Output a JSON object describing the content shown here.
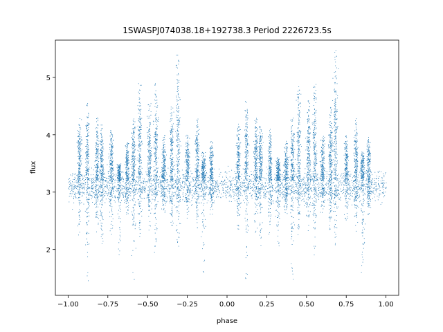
{
  "chart_data": {
    "type": "scatter",
    "title": "1SWASPJ074038.18+192738.3 Period 2226723.5s",
    "xlabel": "phase",
    "ylabel": "flux",
    "xlim": [
      -1.08,
      1.08
    ],
    "ylim": [
      1.2,
      5.65
    ],
    "xticks": [
      -1.0,
      -0.75,
      -0.5,
      -0.25,
      0.0,
      0.25,
      0.5,
      0.75,
      1.0
    ],
    "xtick_labels": [
      "−1.00",
      "−0.75",
      "−0.50",
      "−0.25",
      "0.00",
      "0.25",
      "0.50",
      "0.75",
      "1.00"
    ],
    "yticks": [
      2,
      3,
      4,
      5
    ],
    "ytick_labels": [
      "2",
      "3",
      "4",
      "5"
    ],
    "grid": false,
    "marker_color": "#1f77b4",
    "baseline_flux": 3.1,
    "clusters": [
      {
        "phase": -0.93,
        "top": 4.3,
        "bottom": 2.2
      },
      {
        "phase": -0.88,
        "top": 4.6,
        "bottom": 1.4
      },
      {
        "phase": -0.82,
        "top": 4.3,
        "bottom": 2.3
      },
      {
        "phase": -0.79,
        "top": 4.2,
        "bottom": 2.0
      },
      {
        "phase": -0.73,
        "top": 4.1,
        "bottom": 2.2
      },
      {
        "phase": -0.68,
        "top": 3.5,
        "bottom": 1.9
      },
      {
        "phase": -0.63,
        "top": 3.9,
        "bottom": 2.6
      },
      {
        "phase": -0.59,
        "top": 4.3,
        "bottom": 1.4
      },
      {
        "phase": -0.55,
        "top": 4.9,
        "bottom": 2.2
      },
      {
        "phase": -0.49,
        "top": 4.6,
        "bottom": 2.3
      },
      {
        "phase": -0.45,
        "top": 4.9,
        "bottom": 1.9
      },
      {
        "phase": -0.4,
        "top": 4.0,
        "bottom": 2.6
      },
      {
        "phase": -0.35,
        "top": 4.5,
        "bottom": 2.3
      },
      {
        "phase": -0.31,
        "top": 5.4,
        "bottom": 2.0
      },
      {
        "phase": -0.25,
        "top": 4.0,
        "bottom": 2.5
      },
      {
        "phase": -0.19,
        "top": 4.3,
        "bottom": 2.3
      },
      {
        "phase": -0.15,
        "top": 3.7,
        "bottom": 1.6
      },
      {
        "phase": -0.1,
        "top": 3.9,
        "bottom": 2.6
      },
      {
        "phase": 0.07,
        "top": 4.2,
        "bottom": 2.3
      },
      {
        "phase": 0.12,
        "top": 4.6,
        "bottom": 1.4
      },
      {
        "phase": 0.18,
        "top": 4.3,
        "bottom": 2.3
      },
      {
        "phase": 0.21,
        "top": 4.2,
        "bottom": 2.0
      },
      {
        "phase": 0.27,
        "top": 4.1,
        "bottom": 2.2
      },
      {
        "phase": 0.32,
        "top": 3.6,
        "bottom": 1.9
      },
      {
        "phase": 0.37,
        "top": 3.9,
        "bottom": 2.6
      },
      {
        "phase": 0.41,
        "top": 4.3,
        "bottom": 1.4
      },
      {
        "phase": 0.45,
        "top": 4.9,
        "bottom": 2.2
      },
      {
        "phase": 0.51,
        "top": 4.6,
        "bottom": 2.3
      },
      {
        "phase": 0.55,
        "top": 4.9,
        "bottom": 1.9
      },
      {
        "phase": 0.6,
        "top": 4.0,
        "bottom": 2.6
      },
      {
        "phase": 0.65,
        "top": 4.5,
        "bottom": 2.3
      },
      {
        "phase": 0.68,
        "top": 5.5,
        "bottom": 2.0
      },
      {
        "phase": 0.75,
        "top": 4.0,
        "bottom": 2.5
      },
      {
        "phase": 0.81,
        "top": 4.3,
        "bottom": 2.3
      },
      {
        "phase": 0.85,
        "top": 3.7,
        "bottom": 1.5
      },
      {
        "phase": 0.89,
        "top": 4.0,
        "bottom": 2.6
      }
    ]
  }
}
